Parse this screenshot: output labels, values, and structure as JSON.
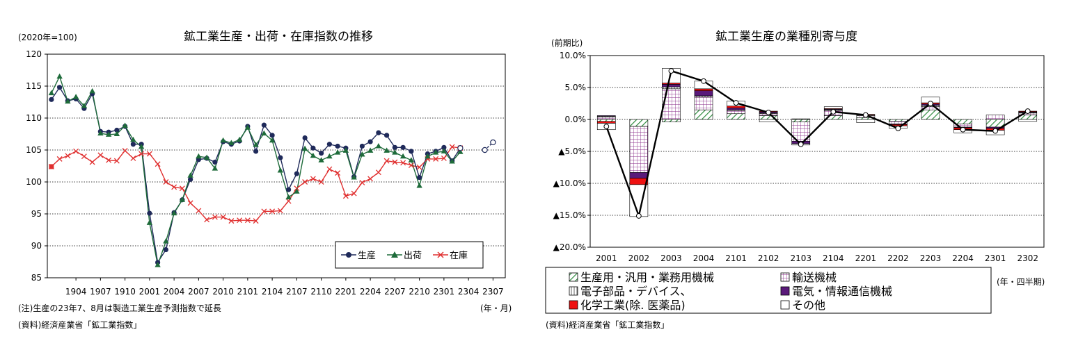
{
  "chart_data": [
    {
      "type": "line",
      "title": "鉱工業生産・出荷・在庫指数の推移",
      "unit_label": "(2020年=100)",
      "x_unit": "(年・月)",
      "ylim": [
        85,
        120
      ],
      "yticks": [
        85,
        90,
        95,
        100,
        105,
        110,
        115,
        120
      ],
      "grid": true,
      "x_tick_labels": [
        "1904",
        "1907",
        "1910",
        "2001",
        "2004",
        "2007",
        "2010",
        "2101",
        "2104",
        "2107",
        "2110",
        "2201",
        "2204",
        "2207",
        "2210",
        "2301",
        "2304",
        "2307"
      ],
      "x": [
        "1901",
        "1902",
        "1903",
        "1904",
        "1905",
        "1906",
        "1907",
        "1908",
        "1909",
        "1910",
        "1911",
        "1912",
        "2001",
        "2002",
        "2003",
        "2004",
        "2005",
        "2006",
        "2007",
        "2008",
        "2009",
        "2010",
        "2011",
        "2012",
        "2101",
        "2102",
        "2103",
        "2104",
        "2105",
        "2106",
        "2107",
        "2108",
        "2109",
        "2110",
        "2111",
        "2112",
        "2201",
        "2202",
        "2203",
        "2204",
        "2205",
        "2206",
        "2207",
        "2208",
        "2209",
        "2210",
        "2211",
        "2212",
        "2301",
        "2302",
        "2303",
        "2304",
        "2305",
        "2306",
        "2307",
        "2308"
      ],
      "series": [
        {
          "name": "生産",
          "color": "#1f2a5a",
          "marker": "circle",
          "values": [
            112.9,
            114.8,
            112.7,
            113.0,
            111.5,
            113.8,
            107.9,
            107.8,
            108.1,
            108.7,
            105.9,
            105.9,
            95.1,
            87.4,
            89.4,
            95.2,
            97.2,
            100.4,
            103.5,
            103.7,
            103.1,
            106.3,
            105.9,
            106.4,
            108.7,
            104.8,
            108.9,
            107.3,
            103.8,
            98.8,
            101.3,
            106.9,
            105.3,
            104.5,
            105.9,
            105.6,
            105.3,
            100.8,
            105.6,
            106.3,
            107.7,
            107.3,
            105.4,
            105.4,
            104.8,
            100.7,
            104.4,
            104.8,
            105.4,
            103.3,
            105.3,
            null,
            null,
            null,
            null,
            null
          ]
        },
        {
          "name": "出荷",
          "color": "#1e6b3a",
          "marker": "triangle",
          "values": [
            113.9,
            116.5,
            112.6,
            113.3,
            111.9,
            114.2,
            107.6,
            107.4,
            107.5,
            108.8,
            106.6,
            105.5,
            93.6,
            87.0,
            90.7,
            95.1,
            97.2,
            101.0,
            104.0,
            103.8,
            102.1,
            106.5,
            106.1,
            106.6,
            108.5,
            105.8,
            107.6,
            106.5,
            101.8,
            97.6,
            98.5,
            105.2,
            104.1,
            103.4,
            104.0,
            104.6,
            104.9,
            100.7,
            104.3,
            104.9,
            105.6,
            104.9,
            104.6,
            104.0,
            103.4,
            99.4,
            104.0,
            104.6,
            104.8,
            103.2,
            104.7,
            null,
            null,
            null,
            null,
            null
          ]
        },
        {
          "name": "在庫",
          "color": "#e03030",
          "marker": "x",
          "values": [
            102.4,
            103.6,
            104.1,
            104.8,
            104.0,
            103.1,
            104.2,
            103.4,
            103.3,
            104.9,
            103.7,
            104.4,
            104.4,
            102.8,
            100.0,
            99.2,
            99.0,
            96.7,
            95.5,
            94.1,
            94.5,
            94.5,
            93.9,
            94.0,
            94.0,
            93.9,
            95.4,
            95.4,
            95.5,
            97.0,
            99.0,
            100.0,
            100.5,
            100.0,
            102.0,
            101.4,
            97.8,
            98.2,
            99.9,
            100.5,
            101.5,
            103.3,
            103.1,
            103.0,
            102.6,
            102.3,
            103.6,
            103.6,
            103.7,
            105.5,
            105.3,
            null,
            null,
            null,
            null,
            null
          ]
        },
        {
          "name": "生産(予測指数で延長)",
          "color": "#1f2a5a",
          "marker": "open-circle",
          "values": [
            null,
            null,
            null,
            null,
            null,
            null,
            null,
            null,
            null,
            null,
            null,
            null,
            null,
            null,
            null,
            null,
            null,
            null,
            null,
            null,
            null,
            null,
            null,
            null,
            null,
            null,
            null,
            null,
            null,
            null,
            null,
            null,
            null,
            null,
            null,
            null,
            null,
            null,
            null,
            null,
            null,
            null,
            null,
            null,
            null,
            null,
            null,
            null,
            null,
            null,
            105.3,
            null,
            null,
            105.0,
            106.2,
            null
          ]
        }
      ],
      "legend_position": "bottom-right",
      "notes": [
        "(注)生産の23年7、8月は製造工業生産予測指数で延長",
        "(資料)経済産業省「鉱工業指数」"
      ]
    },
    {
      "type": "bar",
      "stacked": true,
      "title": "鉱工業生産の業種別寄与度",
      "unit_label": "(前期比)",
      "x_unit": "(年・四半期)",
      "ylim": [
        -20,
        10
      ],
      "yticks": [
        10,
        5,
        0,
        -5,
        -10,
        -15,
        -20
      ],
      "ytick_labels": [
        "10.0%",
        "5.0%",
        "0.0%",
        "▲5.0%",
        "▲10.0%",
        "▲15.0%",
        "▲20.0%"
      ],
      "grid": true,
      "categories": [
        "2001",
        "2002",
        "2003",
        "2004",
        "2101",
        "2102",
        "2103",
        "2104",
        "2201",
        "2202",
        "2203",
        "2204",
        "2301",
        "2302"
      ],
      "series": [
        {
          "name": "生産用・汎用・業務用機械",
          "color": "#2e8b3e",
          "pattern": "hatch",
          "values": [
            -0.3,
            -1.1,
            -0.4,
            1.5,
            0.9,
            0.6,
            -0.4,
            0.6,
            0.3,
            -0.3,
            1.5,
            -0.7,
            -1.2,
            0.7
          ]
        },
        {
          "name": "輸送機械",
          "color": "#8a2c8a",
          "pattern": "grid",
          "values": [
            0.4,
            -7.2,
            4.8,
            2.0,
            0.5,
            0.3,
            -3.0,
            0.8,
            0.3,
            -0.4,
            0.5,
            -0.5,
            0.7,
            0.3
          ]
        },
        {
          "name": "電子部品・デバイス、",
          "color": "#555555",
          "pattern": "vlines",
          "values": [
            0.1,
            0.0,
            0.3,
            0.2,
            0.1,
            0.1,
            0.1,
            0.1,
            0.1,
            0.0,
            0.2,
            0.0,
            0.0,
            0.1
          ]
        },
        {
          "name": "電気・情報通信機械",
          "color": "#5a1a7a",
          "pattern": "solid",
          "values": [
            0.1,
            -0.9,
            0.4,
            0.8,
            0.3,
            0.2,
            -0.4,
            0.1,
            0.0,
            -0.1,
            0.2,
            -0.1,
            -0.2,
            0.1
          ]
        },
        {
          "name": "化学工業(除. 医薬品)",
          "color": "#ee1111",
          "pattern": "solid",
          "values": [
            -0.3,
            -1.0,
            0.2,
            0.3,
            0.3,
            0.1,
            0.0,
            0.1,
            0.1,
            -0.2,
            0.2,
            -0.3,
            -0.3,
            0.1
          ]
        },
        {
          "name": "その他",
          "color": "#ffffff",
          "pattern": "none",
          "values": [
            -1.0,
            -5.0,
            2.3,
            1.2,
            0.8,
            -0.4,
            -0.2,
            0.3,
            -0.5,
            -0.4,
            0.9,
            -0.5,
            -0.7,
            -0.3
          ]
        }
      ],
      "total": {
        "name": "鉱工業生産",
        "color": "#000000",
        "values": [
          -1.1,
          -15.1,
          7.6,
          6.0,
          2.6,
          1.1,
          -3.9,
          1.2,
          0.7,
          -1.4,
          2.5,
          -1.6,
          -1.8,
          1.3
        ]
      },
      "legend_position": "bottom",
      "notes": [
        "(資料)経済産業省「鉱工業指数」"
      ]
    }
  ]
}
